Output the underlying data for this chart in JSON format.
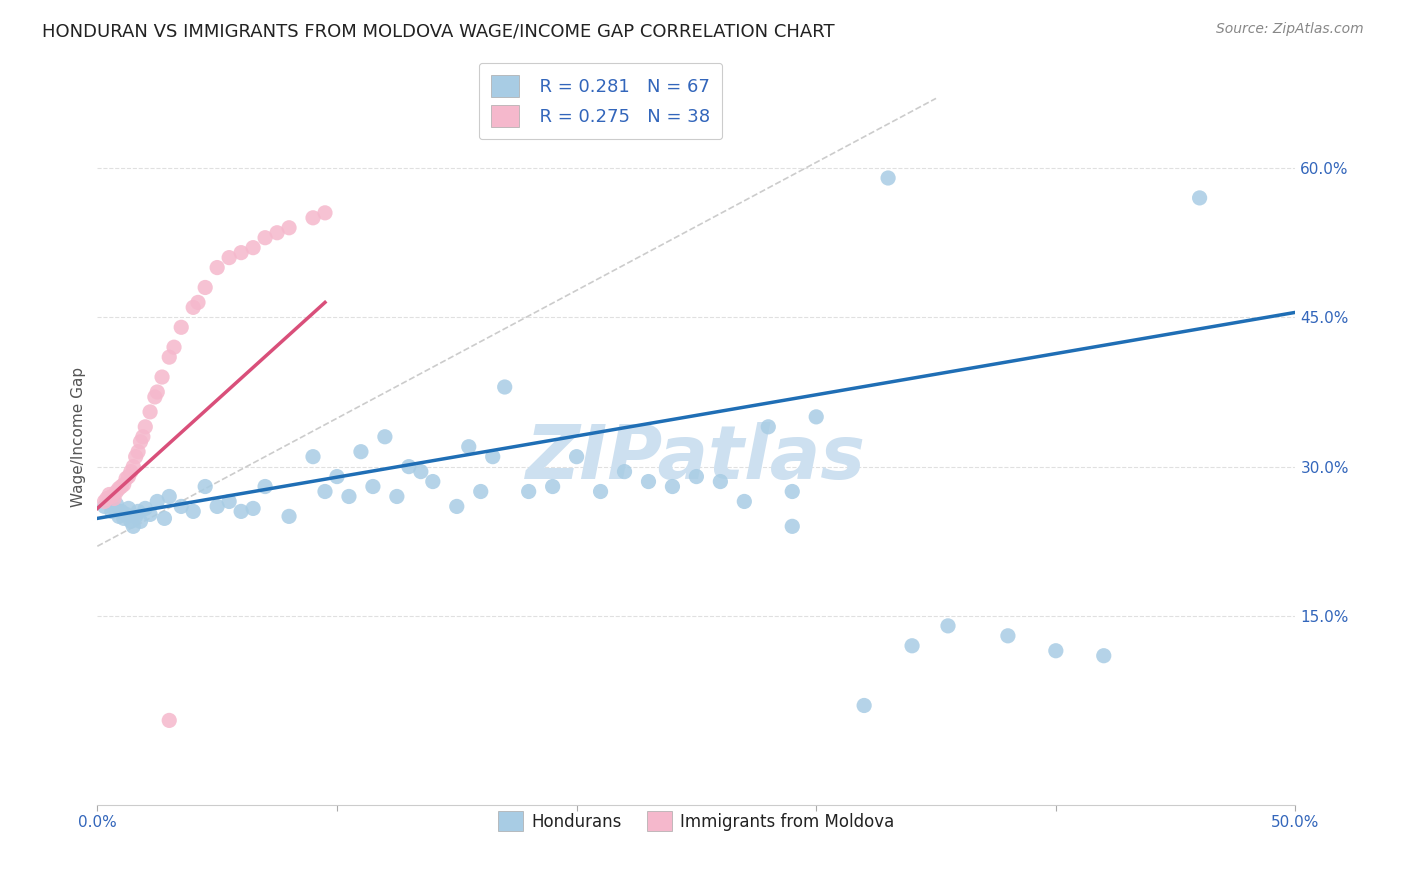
{
  "title": "HONDURAN VS IMMIGRANTS FROM MOLDOVA WAGE/INCOME GAP CORRELATION CHART",
  "source": "Source: ZipAtlas.com",
  "ylabel": "Wage/Income Gap",
  "xlim": [
    0.0,
    0.5
  ],
  "ylim": [
    -0.04,
    0.7
  ],
  "xtick_vals": [
    0.0,
    0.1,
    0.2,
    0.3,
    0.4,
    0.5
  ],
  "xtick_labels": [
    "0.0%",
    "",
    "",
    "",
    "",
    "50.0%"
  ],
  "ytick_vals": [
    0.15,
    0.3,
    0.45,
    0.6
  ],
  "ytick_labels": [
    "15.0%",
    "30.0%",
    "45.0%",
    "60.0%"
  ],
  "legend_R1": "R = 0.281",
  "legend_N1": "N = 67",
  "legend_R2": "R = 0.275",
  "legend_N2": "N = 38",
  "legend_label1": "Hondurans",
  "legend_label2": "Immigrants from Moldova",
  "blue_color": "#a8cce4",
  "pink_color": "#f5b8cc",
  "blue_line_color": "#1f6eb5",
  "pink_line_color": "#d94f7a",
  "diag_line_color": "#cccccc",
  "watermark": "ZIPatlas",
  "watermark_color": "#cde0f0",
  "background_color": "#ffffff",
  "title_color": "#222222",
  "ylabel_color": "#555555",
  "tick_color": "#3366bb",
  "source_color": "#888888",
  "grid_color": "#e0e0e0",
  "blue_x": [
    0.003,
    0.005,
    0.006,
    0.007,
    0.008,
    0.009,
    0.01,
    0.011,
    0.012,
    0.013,
    0.014,
    0.015,
    0.016,
    0.017,
    0.018,
    0.02,
    0.022,
    0.025,
    0.028,
    0.03,
    0.035,
    0.04,
    0.045,
    0.05,
    0.055,
    0.06,
    0.065,
    0.07,
    0.08,
    0.09,
    0.095,
    0.1,
    0.105,
    0.11,
    0.115,
    0.12,
    0.125,
    0.13,
    0.135,
    0.14,
    0.15,
    0.155,
    0.16,
    0.165,
    0.17,
    0.18,
    0.19,
    0.2,
    0.21,
    0.22,
    0.23,
    0.24,
    0.25,
    0.26,
    0.27,
    0.28,
    0.29,
    0.3,
    0.32,
    0.34,
    0.355,
    0.38,
    0.4,
    0.42,
    0.46,
    0.29,
    0.33
  ],
  "blue_y": [
    0.26,
    0.265,
    0.255,
    0.258,
    0.262,
    0.25,
    0.255,
    0.248,
    0.252,
    0.258,
    0.245,
    0.24,
    0.25,
    0.255,
    0.245,
    0.258,
    0.252,
    0.265,
    0.248,
    0.27,
    0.26,
    0.255,
    0.28,
    0.26,
    0.265,
    0.255,
    0.258,
    0.28,
    0.25,
    0.31,
    0.275,
    0.29,
    0.27,
    0.315,
    0.28,
    0.33,
    0.27,
    0.3,
    0.295,
    0.285,
    0.26,
    0.32,
    0.275,
    0.31,
    0.38,
    0.275,
    0.28,
    0.31,
    0.275,
    0.295,
    0.285,
    0.28,
    0.29,
    0.285,
    0.265,
    0.34,
    0.275,
    0.35,
    0.06,
    0.12,
    0.14,
    0.13,
    0.115,
    0.11,
    0.57,
    0.24,
    0.59
  ],
  "pink_x": [
    0.003,
    0.004,
    0.005,
    0.006,
    0.007,
    0.008,
    0.009,
    0.01,
    0.011,
    0.012,
    0.013,
    0.014,
    0.015,
    0.016,
    0.017,
    0.018,
    0.019,
    0.02,
    0.022,
    0.024,
    0.025,
    0.027,
    0.03,
    0.032,
    0.035,
    0.04,
    0.042,
    0.045,
    0.05,
    0.055,
    0.06,
    0.065,
    0.07,
    0.075,
    0.08,
    0.09,
    0.095,
    0.03
  ],
  "pink_y": [
    0.265,
    0.268,
    0.272,
    0.27,
    0.268,
    0.275,
    0.278,
    0.28,
    0.282,
    0.288,
    0.29,
    0.295,
    0.3,
    0.31,
    0.315,
    0.325,
    0.33,
    0.34,
    0.355,
    0.37,
    0.375,
    0.39,
    0.41,
    0.42,
    0.44,
    0.46,
    0.465,
    0.48,
    0.5,
    0.51,
    0.515,
    0.52,
    0.53,
    0.535,
    0.54,
    0.55,
    0.555,
    0.045
  ],
  "blue_trendline": [
    0.0,
    0.5,
    0.248,
    0.455
  ],
  "pink_trendline": [
    0.0,
    0.095,
    0.258,
    0.465
  ]
}
